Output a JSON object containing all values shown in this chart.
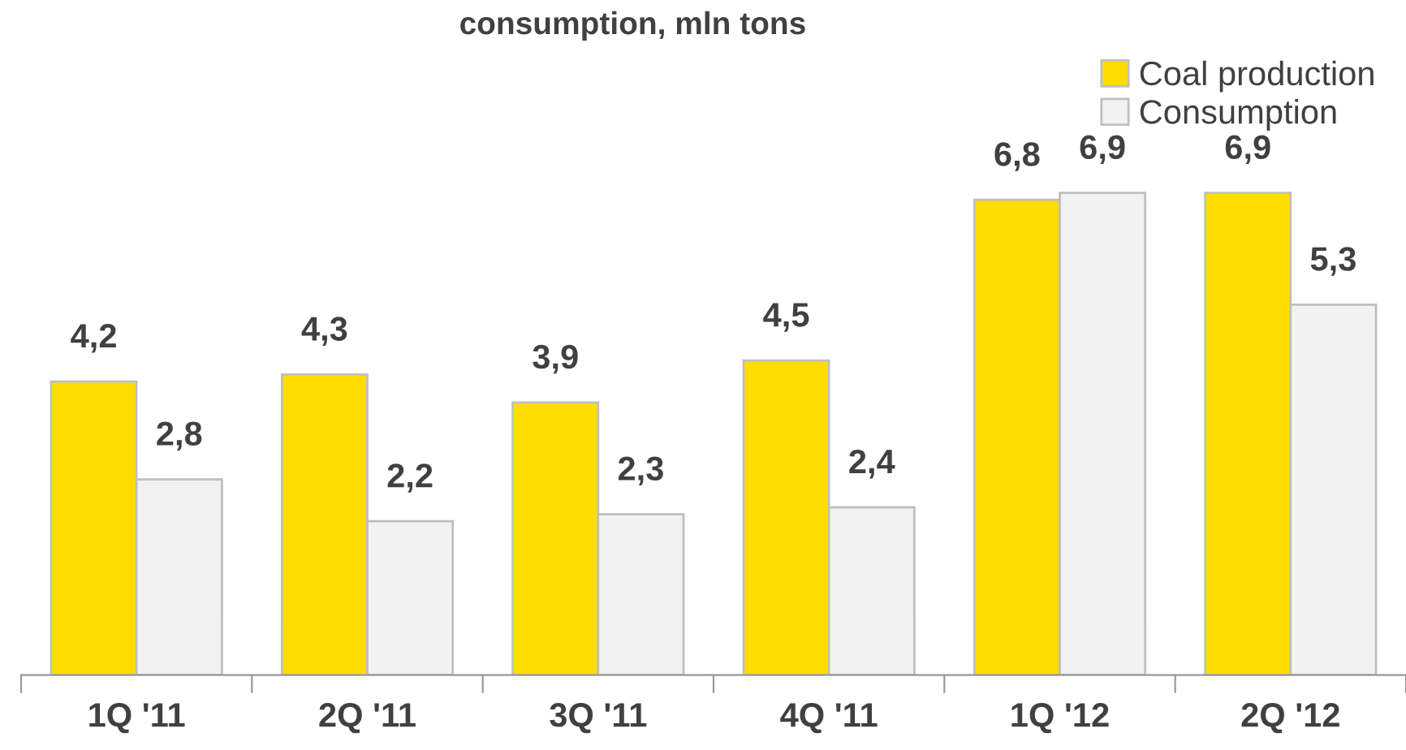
{
  "chart_data": {
    "type": "bar",
    "title": "consumption, mln tons",
    "categories": [
      "1Q '11",
      "2Q '11",
      "3Q '11",
      "4Q '11",
      "1Q '12",
      "2Q '12"
    ],
    "series": [
      {
        "name": "Coal production",
        "color": "#ffdd00",
        "values": [
          4.2,
          4.3,
          3.9,
          4.5,
          6.8,
          6.9
        ],
        "value_labels": [
          "4,2",
          "4,3",
          "3,9",
          "4,5",
          "6,8",
          "6,9"
        ]
      },
      {
        "name": "Consumption",
        "color": "#f2f2f2",
        "values": [
          2.8,
          2.2,
          2.3,
          2.4,
          6.9,
          5.3
        ],
        "value_labels": [
          "2,8",
          "2,2",
          "2,3",
          "2,4",
          "6,9",
          "5,3"
        ]
      }
    ],
    "legend": "top right",
    "grid": false,
    "tick_labels": "x"
  }
}
